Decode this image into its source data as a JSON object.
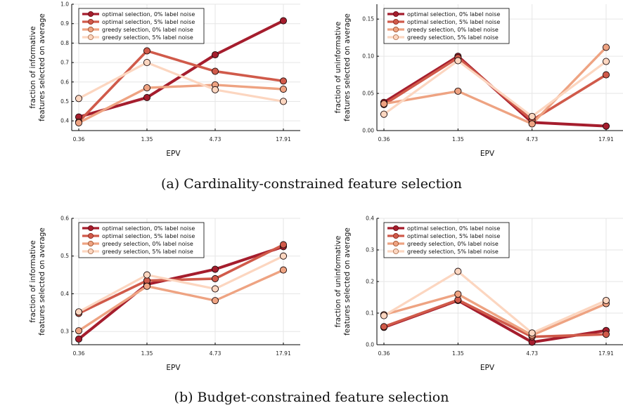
{
  "chart_data": [
    {
      "type": "line",
      "x": [
        "0.36",
        "1.35",
        "4.73",
        "17.91"
      ],
      "xlabel": "EPV",
      "ylabel": [
        "fraction of informative",
        "features selected on average"
      ],
      "ylim": [
        0.35,
        1.0
      ],
      "yticks": [
        "0.4",
        "0.5",
        "0.6",
        "0.7",
        "0.8",
        "0.9",
        "1.0"
      ],
      "ytick_values": [
        0.4,
        0.5,
        0.6,
        0.7,
        0.8,
        0.9,
        1.0
      ],
      "legend_position": "top-left",
      "grid": true,
      "series": [
        {
          "name": "optimal selection, 0% label noise",
          "values": [
            0.42,
            0.52,
            0.74,
            0.915
          ]
        },
        {
          "name": "optimal selection, 5% label noise",
          "values": [
            0.395,
            0.76,
            0.655,
            0.605
          ]
        },
        {
          "name": "greedy selection, 0% label noise",
          "values": [
            0.39,
            0.57,
            0.585,
            0.563
          ]
        },
        {
          "name": "greedy selection, 5% label noise",
          "values": [
            0.515,
            0.7,
            0.56,
            0.5
          ]
        }
      ]
    },
    {
      "type": "line",
      "x": [
        "0.36",
        "1.35",
        "4.73",
        "17.91"
      ],
      "xlabel": "EPV",
      "ylabel": [
        "fraction of uninformative",
        "features selected on average"
      ],
      "ylim": [
        0.0,
        0.17
      ],
      "yticks": [
        "0.00",
        "0.05",
        "0.10",
        "0.15"
      ],
      "ytick_values": [
        0.0,
        0.05,
        0.1,
        0.15
      ],
      "legend_position": "top-left",
      "grid": true,
      "series": [
        {
          "name": "optimal selection, 0% label noise",
          "values": [
            0.038,
            0.1,
            0.011,
            0.006
          ]
        },
        {
          "name": "optimal selection, 5% label noise",
          "values": [
            0.035,
            0.098,
            0.014,
            0.075
          ]
        },
        {
          "name": "greedy selection, 0% label noise",
          "values": [
            0.036,
            0.053,
            0.009,
            0.112
          ]
        },
        {
          "name": "greedy selection, 5% label noise",
          "values": [
            0.022,
            0.094,
            0.019,
            0.093
          ]
        }
      ]
    },
    {
      "type": "line",
      "x": [
        "0.36",
        "1.35",
        "4.73",
        "17.91"
      ],
      "xlabel": "EPV",
      "ylabel": [
        "fraction of informative",
        "features selected on average"
      ],
      "ylim": [
        0.265,
        0.6
      ],
      "yticks": [
        "0.3",
        "0.4",
        "0.5",
        "0.6"
      ],
      "ytick_values": [
        0.3,
        0.4,
        0.5,
        0.6
      ],
      "legend_position": "top-left",
      "grid": true,
      "series": [
        {
          "name": "optimal selection, 0% label noise",
          "values": [
            0.28,
            0.425,
            0.465,
            0.525
          ]
        },
        {
          "name": "optimal selection, 5% label noise",
          "values": [
            0.348,
            0.435,
            0.44,
            0.53
          ]
        },
        {
          "name": "greedy selection, 0% label noise",
          "values": [
            0.302,
            0.42,
            0.382,
            0.463
          ]
        },
        {
          "name": "greedy selection, 5% label noise",
          "values": [
            0.352,
            0.45,
            0.413,
            0.5
          ]
        }
      ]
    },
    {
      "type": "line",
      "x": [
        "0.36",
        "1.35",
        "4.73",
        "17.91"
      ],
      "xlabel": "EPV",
      "ylabel": [
        "fraction of uninformative",
        "features selected on average"
      ],
      "ylim": [
        0.0,
        0.4
      ],
      "yticks": [
        "0.0",
        "0.1",
        "0.2",
        "0.3",
        "0.4"
      ],
      "ytick_values": [
        0.0,
        0.1,
        0.2,
        0.3,
        0.4
      ],
      "legend_position": "top-left",
      "grid": true,
      "series": [
        {
          "name": "optimal selection, 0% label noise",
          "values": [
            0.055,
            0.14,
            0.008,
            0.045
          ]
        },
        {
          "name": "optimal selection, 5% label noise",
          "values": [
            0.057,
            0.142,
            0.025,
            0.033
          ]
        },
        {
          "name": "greedy selection, 0% label noise",
          "values": [
            0.095,
            0.16,
            0.03,
            0.13
          ]
        },
        {
          "name": "greedy selection, 5% label noise",
          "values": [
            0.092,
            0.232,
            0.037,
            0.14
          ]
        }
      ]
    }
  ],
  "captions": {
    "a": "(a) Cardinality-constrained feature selection",
    "b": "(b) Budget-constrained feature selection"
  },
  "colors": {
    "series": [
      "#a51d2d",
      "#d05a4a",
      "#eea382",
      "#fcd6c0"
    ],
    "marker_edge": "#1a0a0a",
    "legend_marker_edge": [
      "#6b0d17",
      "#8c2a20",
      "#a0522d",
      "#b07555"
    ],
    "grid": "#e6e6e6",
    "axis": "#000000"
  }
}
